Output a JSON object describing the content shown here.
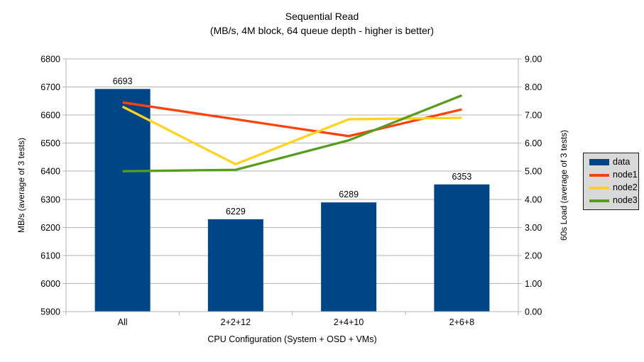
{
  "title": "Sequential Read",
  "subtitle": "(MB/s, 4M block, 64 queue depth - higher is better)",
  "chart_data": {
    "type": "bar+line",
    "title": "Sequential Read",
    "subtitle": "(MB/s, 4M block, 64 queue depth - higher is better)",
    "categories": [
      "All",
      "2+2+12",
      "2+4+10",
      "2+6+8"
    ],
    "series": [
      {
        "name": "data",
        "type": "bar",
        "axis": "left",
        "color": "#004586",
        "values": [
          6693,
          6229,
          6289,
          6353
        ],
        "value_labels": [
          "6693",
          "6229",
          "6289",
          "6353"
        ]
      },
      {
        "name": "node1",
        "type": "line",
        "axis": "right",
        "color": "#FF420E",
        "values": [
          7.45,
          6.85,
          6.25,
          7.2
        ]
      },
      {
        "name": "node2",
        "type": "line",
        "axis": "right",
        "color": "#FFD320",
        "values": [
          7.3,
          5.25,
          6.85,
          6.9
        ]
      },
      {
        "name": "node3",
        "type": "line",
        "axis": "right",
        "color": "#579D1C",
        "values": [
          5.0,
          5.05,
          6.1,
          7.7
        ]
      }
    ],
    "xlabel": "CPU Configuration (System + OSD + VMs)",
    "left_axis": {
      "label": "MB/s (average of 3 tests)",
      "min": 5900,
      "max": 6800,
      "step": 100,
      "tick_labels": [
        "5900",
        "6000",
        "6100",
        "6200",
        "6300",
        "6400",
        "6500",
        "6600",
        "6700",
        "6800"
      ]
    },
    "right_axis": {
      "label": "60s Load (average of 3 tests)",
      "min": 0,
      "max": 9,
      "step": 1,
      "decimals": 2,
      "tick_labels": [
        "0.00",
        "1.00",
        "2.00",
        "3.00",
        "4.00",
        "5.00",
        "6.00",
        "7.00",
        "8.00",
        "9.00"
      ]
    },
    "legend": {
      "position": "right",
      "entries": [
        "data",
        "node1",
        "node2",
        "node3"
      ]
    },
    "grid": true,
    "colors": {
      "background": "#ffffff",
      "grid": "#b3b3b3",
      "axis": "#b3b3b3",
      "text": "#000000",
      "legend_bg": "#d9d9d9",
      "legend_border": "#1a1a1a"
    }
  }
}
